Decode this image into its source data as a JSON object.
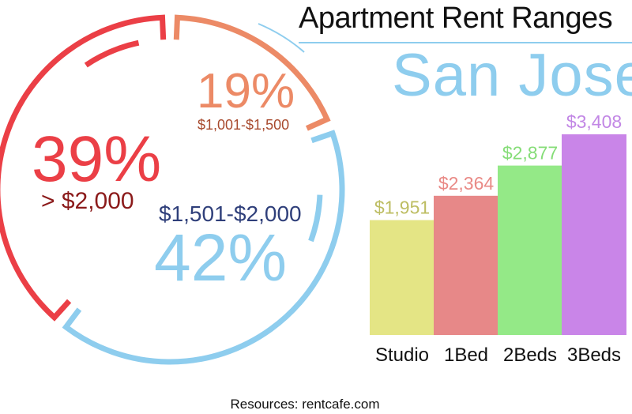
{
  "title": "Apartment Rent Ranges",
  "city": "San Jose",
  "source": "Resources: rentcafe.com",
  "colors": {
    "red": "#eb3f46",
    "orange": "#ec8a66",
    "blue": "#8ecdee",
    "dark_red": "#8b1a1a",
    "brown": "#a84a2e",
    "navy": "#2f3f7a"
  },
  "chart_data": [
    {
      "type": "pie",
      "title": "",
      "slices": [
        {
          "label": "$1,001-$1,500",
          "value": 19,
          "display": "19%",
          "color": "#ec8a66"
        },
        {
          "label": "$1,501-$2,000",
          "value": 42,
          "display": "42%",
          "color": "#8ecdee"
        },
        {
          "label": "> $2,000",
          "value": 39,
          "display": "39%",
          "color": "#eb3f46"
        }
      ]
    },
    {
      "type": "bar",
      "title": "San Jose",
      "xlabel": "",
      "ylabel": "",
      "categories": [
        "Studio",
        "1Bed",
        "2Beds",
        "3Beds"
      ],
      "values": [
        1951,
        2364,
        2877,
        3408
      ],
      "value_labels": [
        "$1,951",
        "$2,364",
        "$2,877",
        "$3,408"
      ],
      "colors": [
        "#e4e585",
        "#e78888",
        "#94e987",
        "#c985e8"
      ],
      "label_colors": [
        "#bdbd62",
        "#e98a86",
        "#86dd78",
        "#c287e5"
      ],
      "ylim": [
        0,
        3408
      ]
    }
  ]
}
